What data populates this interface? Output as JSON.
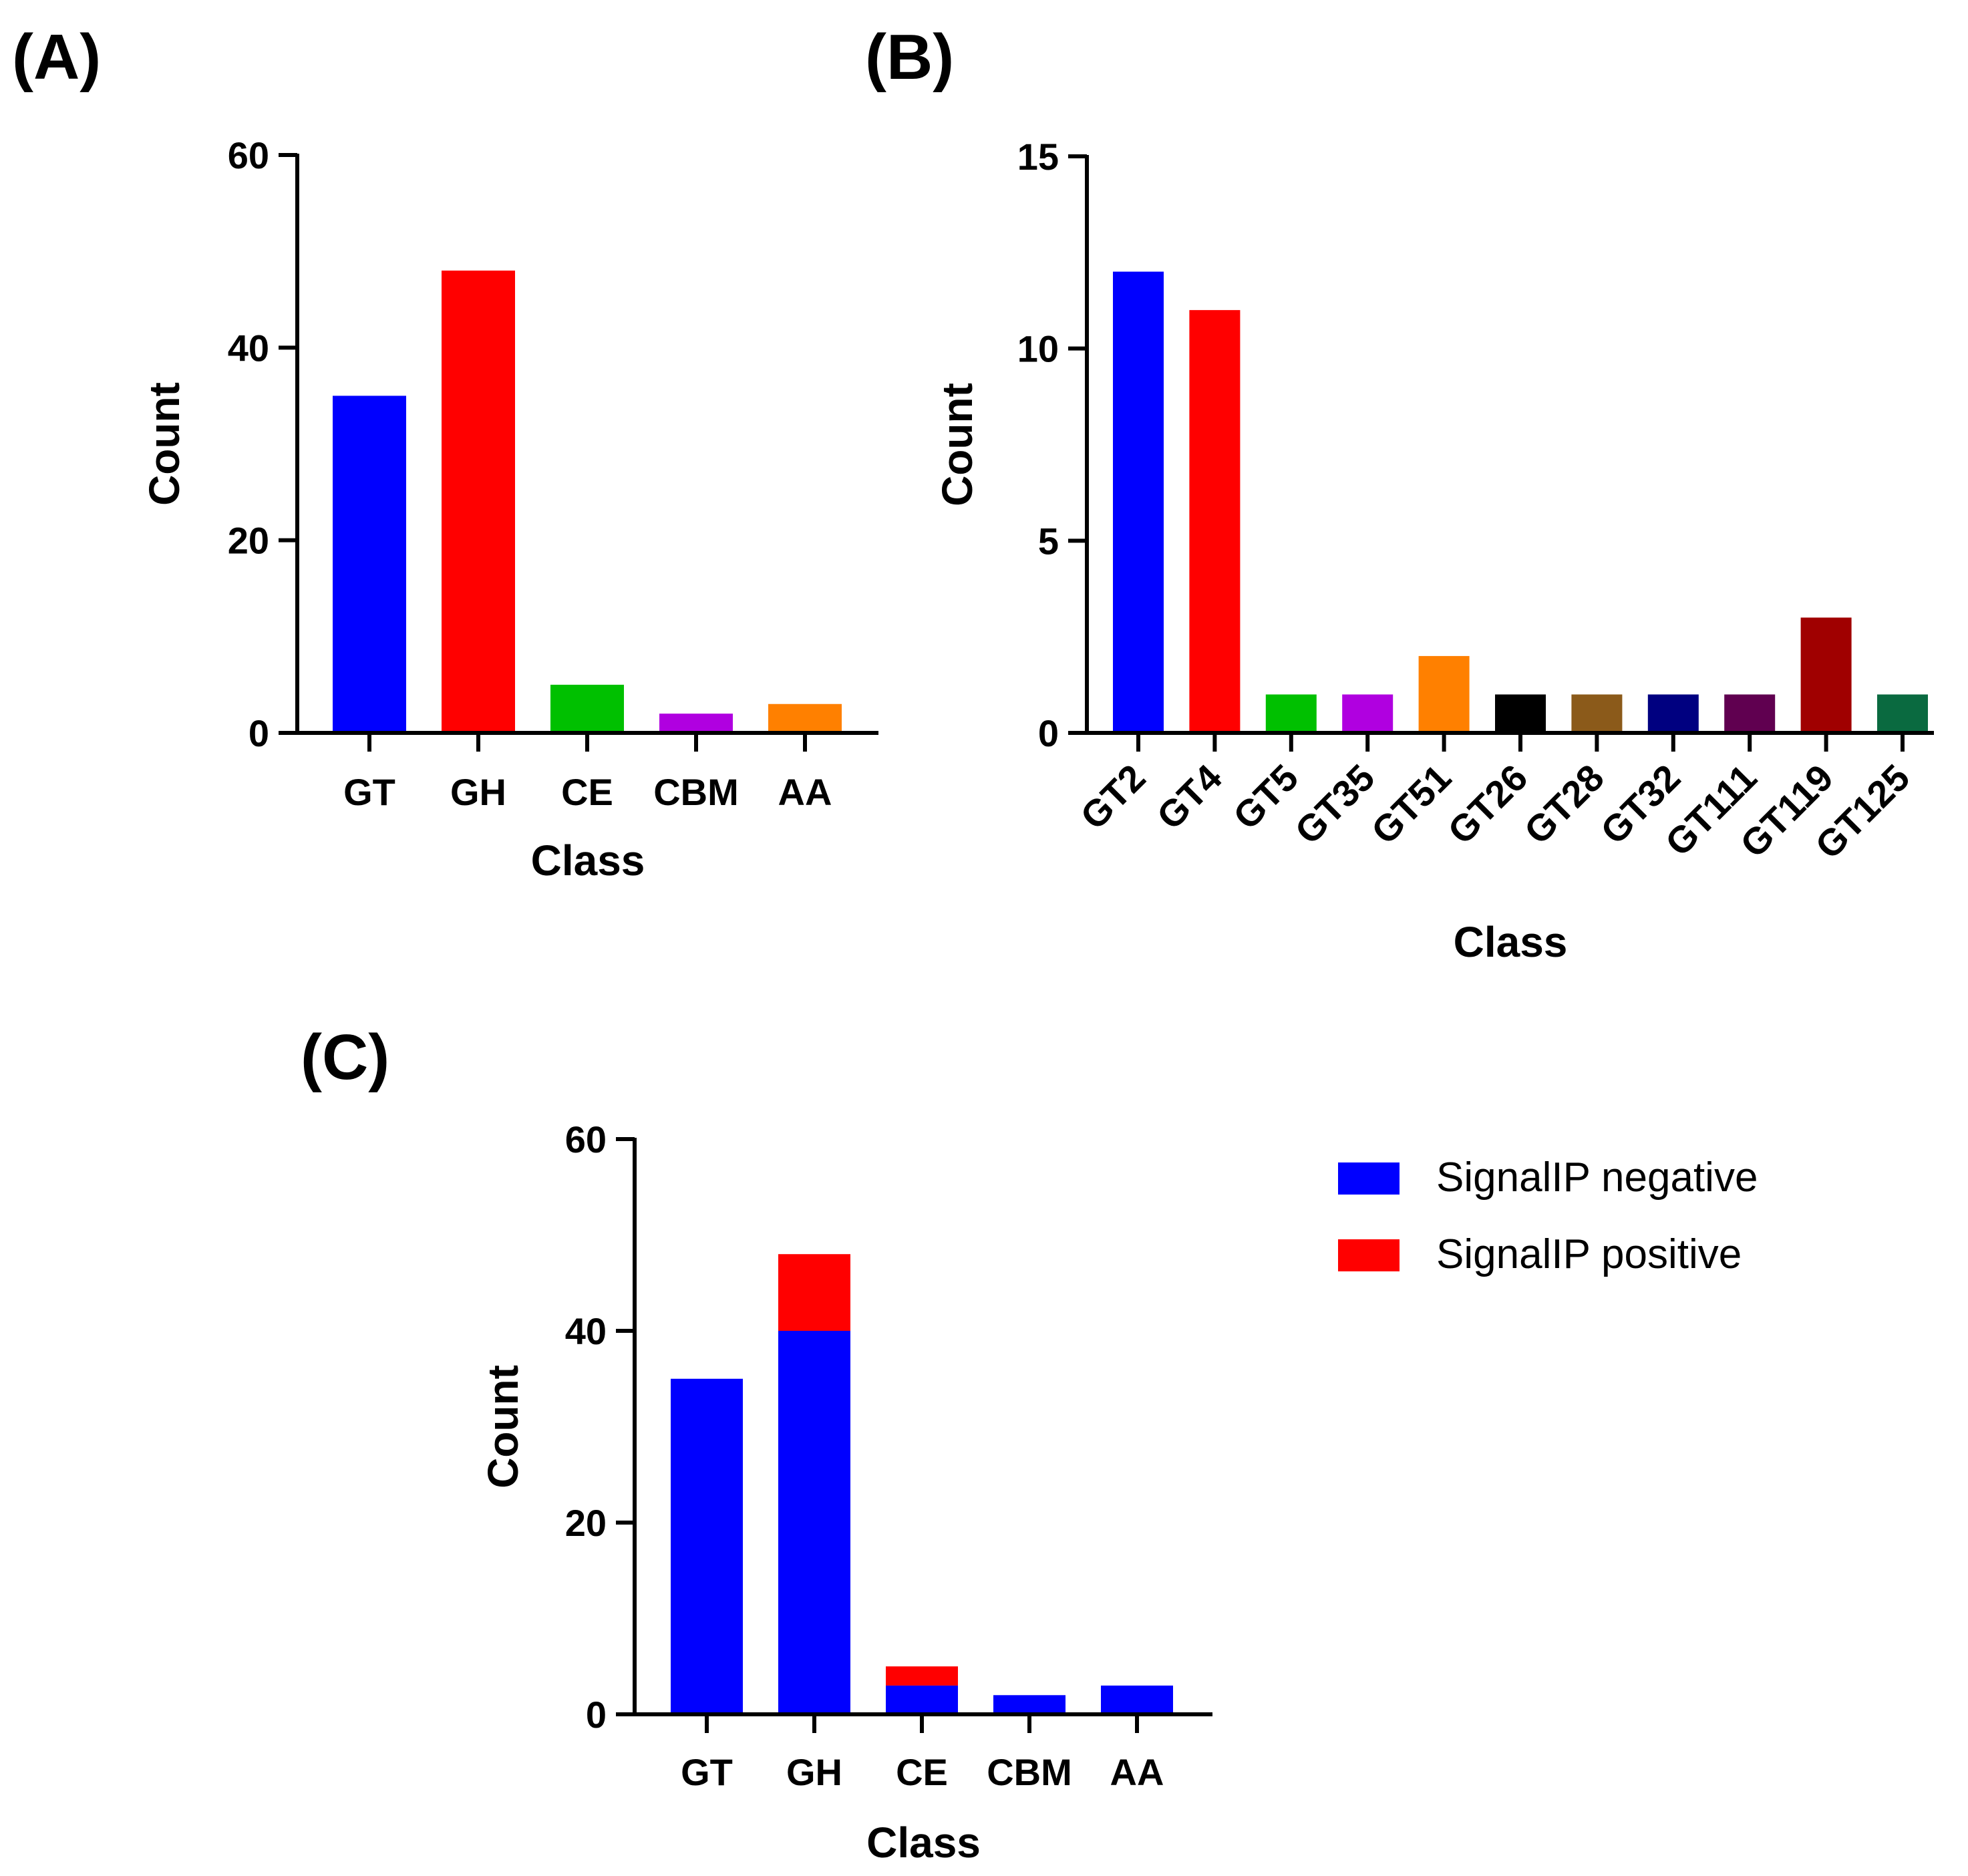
{
  "panels": {
    "a": {
      "label": "(A)"
    },
    "b": {
      "label": "(B)"
    },
    "c": {
      "label": "(C)"
    }
  },
  "chart_data": [
    {
      "id": "a",
      "type": "bar",
      "title": "",
      "xlabel": "Class",
      "ylabel": "Count",
      "ylim": [
        0,
        60
      ],
      "yticks": [
        0,
        20,
        40,
        60
      ],
      "categories": [
        "GT",
        "GH",
        "CE",
        "CBM",
        "AA"
      ],
      "values": [
        35,
        48,
        5,
        2,
        3
      ],
      "colors": [
        "#0000ff",
        "#ff0000",
        "#00c000",
        "#b000e0",
        "#ff8000"
      ],
      "grid": false
    },
    {
      "id": "b",
      "type": "bar",
      "title": "",
      "xlabel": "Class",
      "ylabel": "Count",
      "ylim": [
        0,
        15
      ],
      "yticks": [
        0,
        5,
        10,
        15
      ],
      "categories": [
        "GT2",
        "GT4",
        "GT5",
        "GT35",
        "GT51",
        "GT26",
        "GT28",
        "GT32",
        "GT111",
        "GT119",
        "GT125"
      ],
      "values": [
        12,
        11,
        1,
        1,
        2,
        1,
        1,
        1,
        1,
        3,
        1
      ],
      "colors": [
        "#0000ff",
        "#ff0000",
        "#00c000",
        "#b000e0",
        "#ff8000",
        "#000000",
        "#8b5a1a",
        "#000080",
        "#600050",
        "#a00000",
        "#0a6a40"
      ],
      "grid": false
    },
    {
      "id": "c",
      "type": "bar",
      "stacked": true,
      "title": "",
      "xlabel": "Class",
      "ylabel": "Count",
      "ylim": [
        0,
        60
      ],
      "yticks": [
        0,
        20,
        40,
        60
      ],
      "categories": [
        "GT",
        "GH",
        "CE",
        "CBM",
        "AA"
      ],
      "series": [
        {
          "name": "SignalIP negative",
          "color": "#0000ff",
          "values": [
            35,
            40,
            3,
            2,
            3
          ]
        },
        {
          "name": "SignalIP positive",
          "color": "#ff0000",
          "values": [
            0,
            8,
            2,
            0,
            0
          ]
        }
      ],
      "legend_position": "right",
      "grid": false
    }
  ]
}
